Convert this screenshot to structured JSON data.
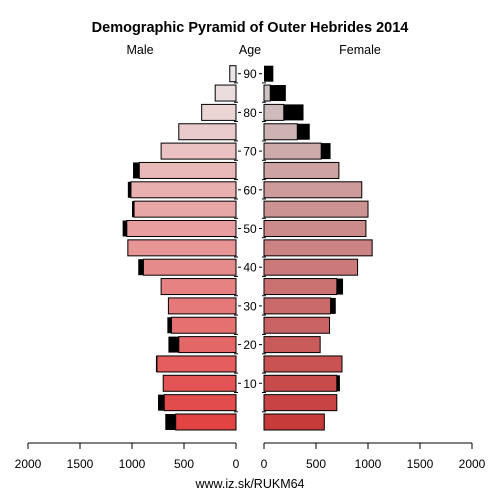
{
  "chart_data": {
    "type": "bar",
    "title": "Demographic Pyramid of Outer Hebrides 2014",
    "left_label": "Male",
    "center_label": "Age",
    "right_label": "Female",
    "footer": "www.iz.sk/RUKM64",
    "xlim": [
      0,
      2000
    ],
    "x_ticks": [
      2000,
      1500,
      1000,
      500,
      0
    ],
    "x_ticks_right": [
      0,
      500,
      1000,
      1500,
      2000
    ],
    "age_ticks": [
      10,
      20,
      30,
      40,
      50,
      60,
      70,
      80,
      90
    ],
    "categories": [
      "0-4",
      "5-9",
      "10-14",
      "15-19",
      "20-24",
      "25-29",
      "30-34",
      "35-39",
      "40-44",
      "45-49",
      "50-54",
      "55-59",
      "60-64",
      "65-69",
      "70-74",
      "75-79",
      "80-84",
      "85-89",
      "90+"
    ],
    "series": [
      {
        "name": "Male",
        "values": [
          580,
          690,
          700,
          760,
          550,
          620,
          650,
          720,
          890,
          1040,
          1050,
          980,
          1010,
          930,
          720,
          550,
          330,
          200,
          60
        ],
        "excess": [
          100,
          60,
          0,
          10,
          100,
          40,
          0,
          0,
          50,
          0,
          40,
          20,
          30,
          60,
          0,
          0,
          0,
          0,
          0
        ]
      },
      {
        "name": "Female",
        "values": [
          580,
          700,
          700,
          750,
          540,
          630,
          640,
          700,
          900,
          1040,
          980,
          1000,
          940,
          720,
          550,
          320,
          190,
          60,
          0
        ],
        "excess": [
          0,
          0,
          30,
          0,
          0,
          0,
          50,
          60,
          0,
          0,
          0,
          0,
          0,
          0,
          90,
          120,
          190,
          150,
          90
        ]
      }
    ],
    "colors": {
      "young": "#e24343",
      "old": "#ece6e6",
      "excess": "#000000",
      "female_texture_row": "35-39"
    }
  }
}
